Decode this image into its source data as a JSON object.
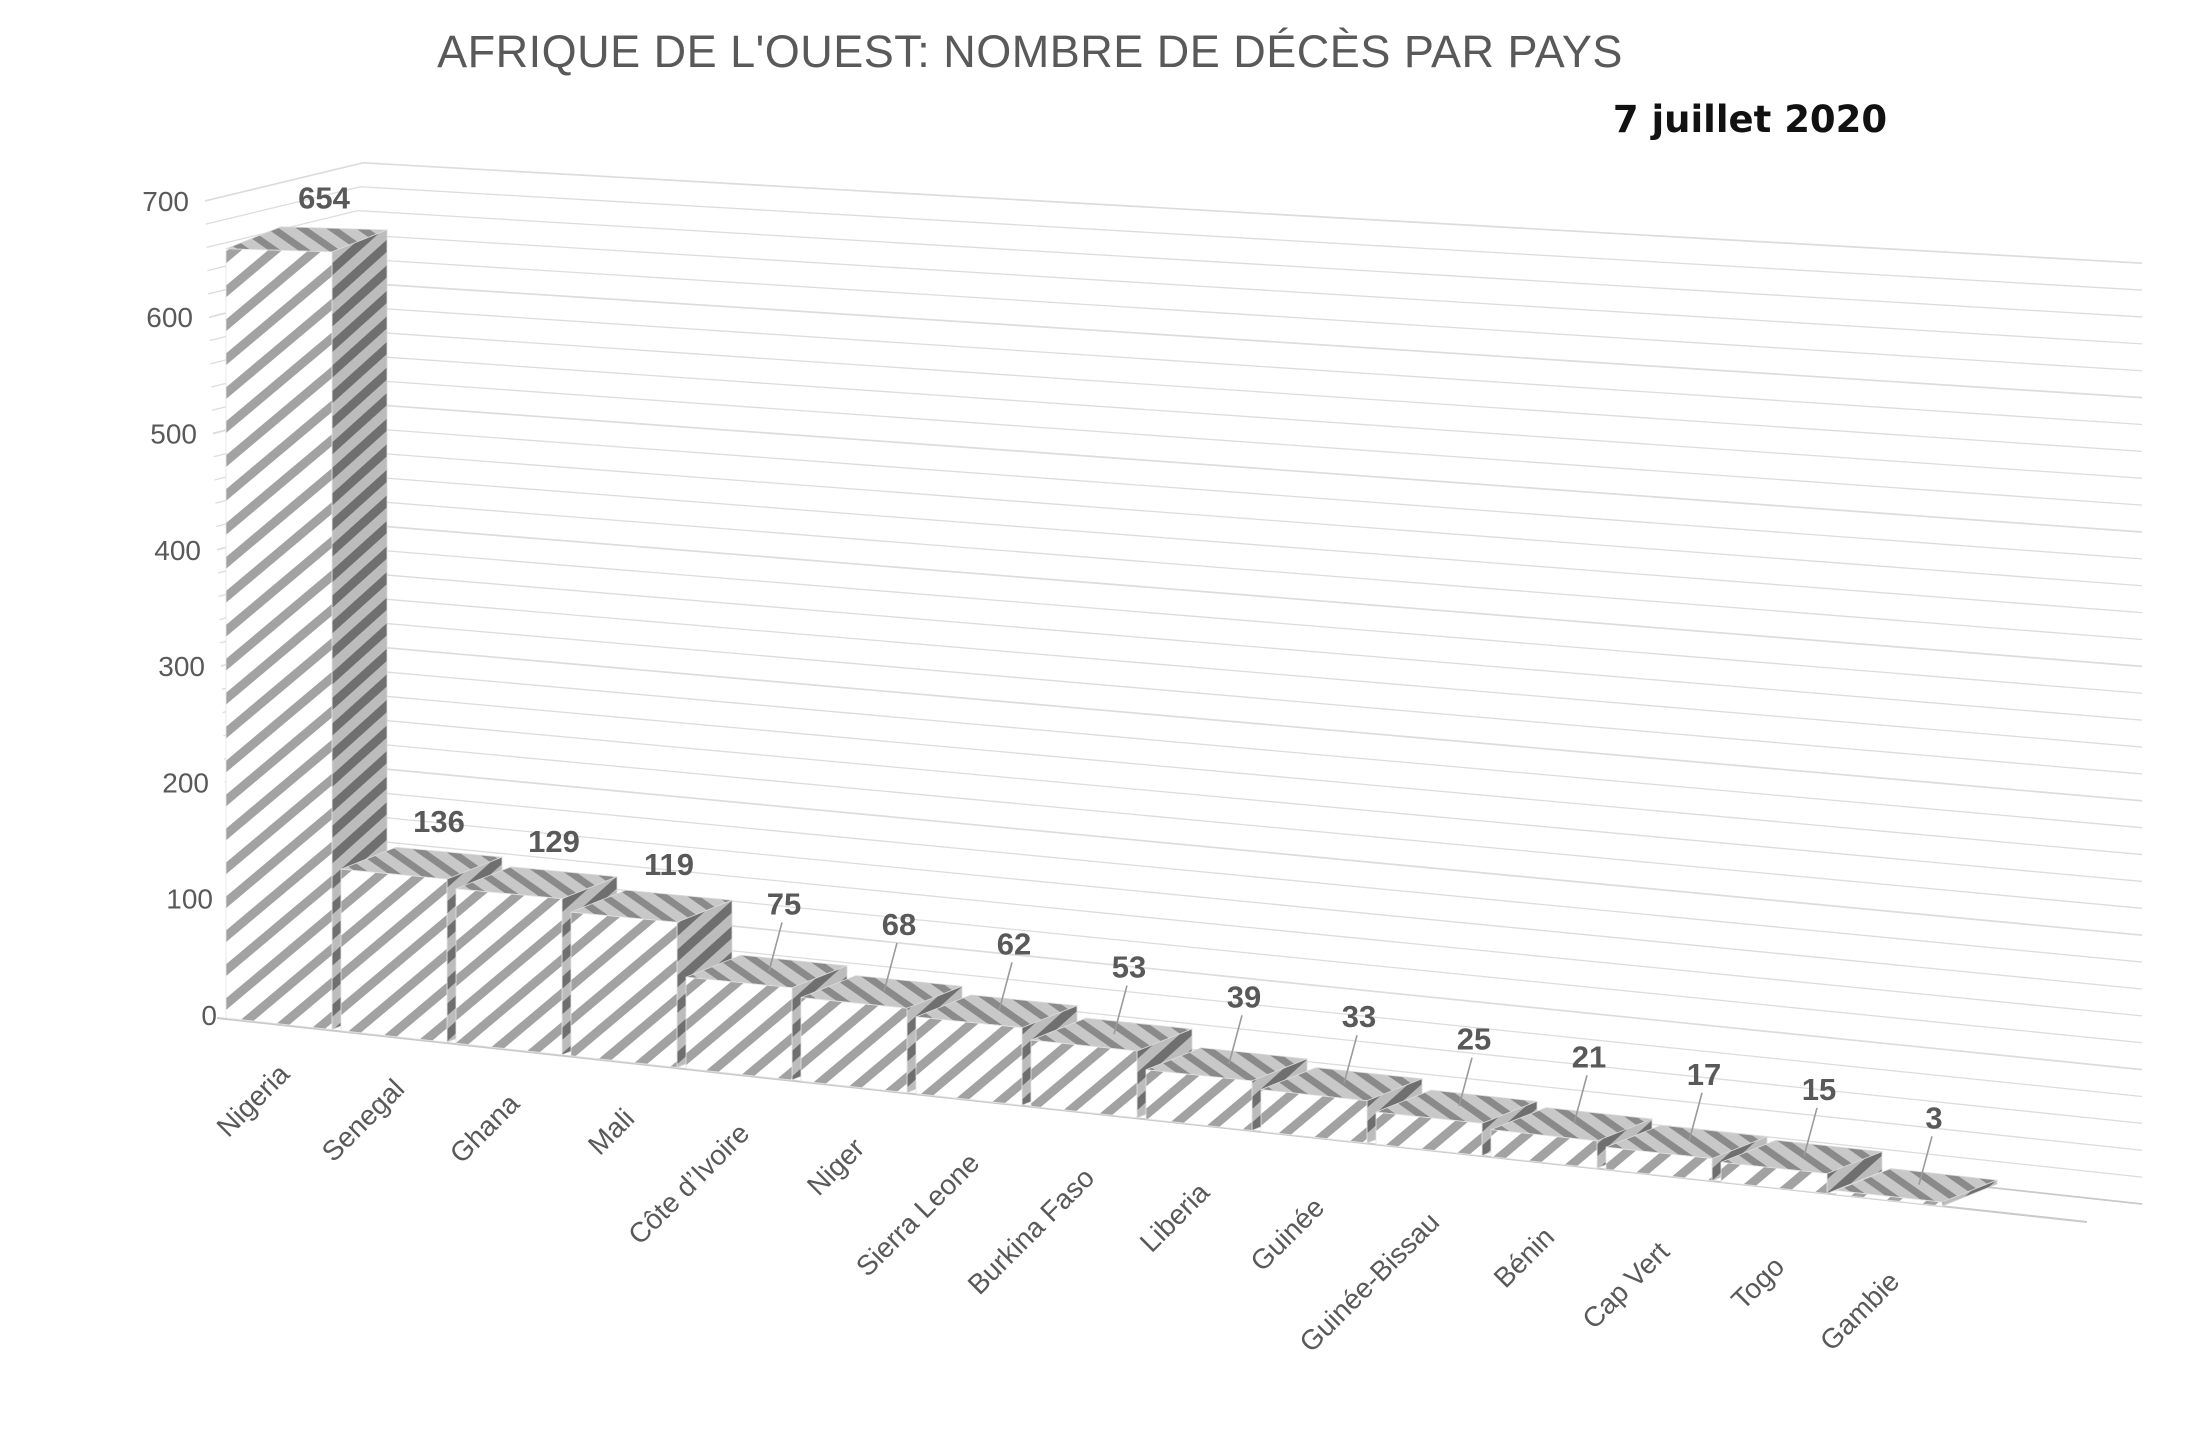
{
  "chart": {
    "title": "AFRIQUE DE L'OUEST: NOMBRE DE DÉCÈS PAR PAYS",
    "subtitle": "7 juillet 2020"
  },
  "chart_data": {
    "type": "bar",
    "projection": "3d-perspective",
    "title": "AFRIQUE DE L'OUEST: NOMBRE DE DÉCÈS PAR PAYS",
    "subtitle": "7 juillet 2020",
    "categories": [
      "Nigeria",
      "Senegal",
      "Ghana",
      "Mali",
      "Côte d’Ivoire",
      "Niger",
      "Sierra Leone",
      "Burkina Faso",
      "Liberia",
      "Guinée",
      "Guinée-Bissau",
      "Bénin",
      "Cap Vert",
      "Togo",
      "Gambie"
    ],
    "values": [
      654,
      136,
      129,
      119,
      75,
      68,
      62,
      53,
      39,
      33,
      25,
      21,
      17,
      15,
      3
    ],
    "xlabel": "",
    "ylabel": "",
    "ylim": [
      0,
      700
    ],
    "yticks": [
      0,
      100,
      200,
      300,
      400,
      500,
      600,
      700
    ],
    "minor_gridline_step": 20,
    "grid": "on",
    "legend": "none",
    "data_labels": "above-bars-with-leader-lines",
    "bar_fill_style": "diagonal-hatch",
    "colors": {
      "title_text": "#595959",
      "subtitle_text": "#111111",
      "axis_text": "#595959",
      "value_label_text": "#595959",
      "gridline": "#dcdcdc",
      "floor_edge": "#c9c9c9",
      "leader_line": "#9a9a9a",
      "hatch_front_stripe": "#a2a2a2",
      "hatch_front_bg": "#ffffff",
      "hatch_side_stripe": "#6f6f6f",
      "hatch_side_bg": "#bcbcbc",
      "hatch_top_stripe": "#8a8a8a",
      "hatch_top_bg": "#c8c8c8"
    }
  }
}
